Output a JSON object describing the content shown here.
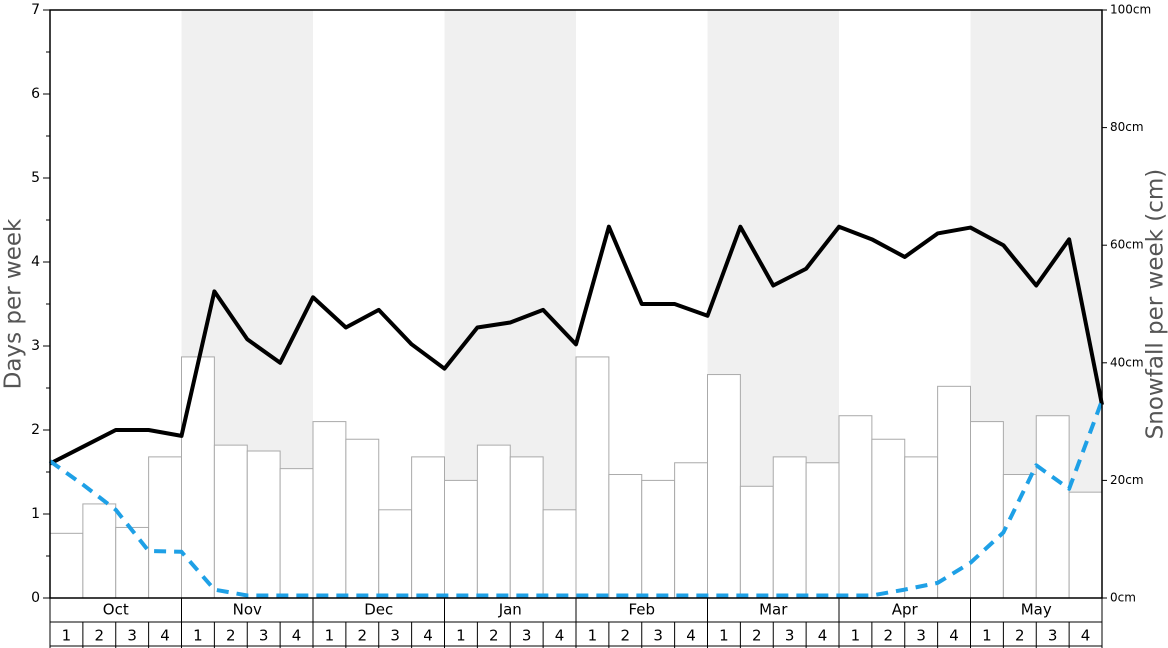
{
  "chart_data": {
    "type": "bar",
    "ylabel": "Days per week",
    "y2label": "Snowfall per week (cm)",
    "ylim": [
      0,
      7
    ],
    "yticks": [
      0,
      1,
      2,
      3,
      4,
      5,
      6,
      7
    ],
    "yminorticks": [
      0.5,
      1.5,
      2.5,
      3.5,
      4.5,
      5.5,
      6.5
    ],
    "y2lim": [
      0,
      100
    ],
    "y2ticks": [
      {
        "value": 0,
        "label": "0cm"
      },
      {
        "value": 20,
        "label": "20cm"
      },
      {
        "value": 40,
        "label": "40cm"
      },
      {
        "value": 60,
        "label": "60cm"
      },
      {
        "value": 80,
        "label": "80cm"
      },
      {
        "value": 100,
        "label": "100cm"
      }
    ],
    "months": [
      "Oct",
      "Nov",
      "Dec",
      "Jan",
      "Feb",
      "Mar",
      "Apr",
      "May"
    ],
    "weeks": [
      "1",
      "2",
      "3",
      "4"
    ],
    "series": [
      {
        "type": "bar",
        "axis": "y2",
        "color": "#ffffff",
        "values": [
          11,
          16,
          12,
          24,
          41,
          26,
          25,
          22,
          30,
          27,
          15,
          24,
          20,
          26,
          24,
          15,
          41,
          21,
          20,
          23,
          38,
          19,
          24,
          23,
          31,
          27,
          24,
          36,
          30,
          21,
          31,
          18
        ]
      },
      {
        "type": "line",
        "color": "#000000",
        "dashed": false,
        "values": [
          1.6,
          1.8,
          2.0,
          2.0,
          1.93,
          3.65,
          3.08,
          2.8,
          3.58,
          3.22,
          3.43,
          3.02,
          2.73,
          3.22,
          3.28,
          3.43,
          3.02,
          4.42,
          3.5,
          3.5,
          3.36,
          4.42,
          3.72,
          3.92,
          4.42,
          4.27,
          4.06,
          4.34,
          4.41,
          4.2,
          3.72,
          4.27,
          2.3
        ]
      },
      {
        "type": "line",
        "color": "#1ea0e6",
        "dashed": true,
        "values": [
          1.63,
          1.35,
          1.05,
          0.56,
          0.55,
          0.1,
          0.03,
          0.03,
          0.03,
          0.03,
          0.03,
          0.03,
          0.03,
          0.03,
          0.03,
          0.03,
          0.03,
          0.03,
          0.03,
          0.03,
          0.03,
          0.03,
          0.03,
          0.03,
          0.03,
          0.03,
          0.1,
          0.18,
          0.42,
          0.78,
          1.58,
          1.3,
          2.35
        ]
      }
    ]
  }
}
